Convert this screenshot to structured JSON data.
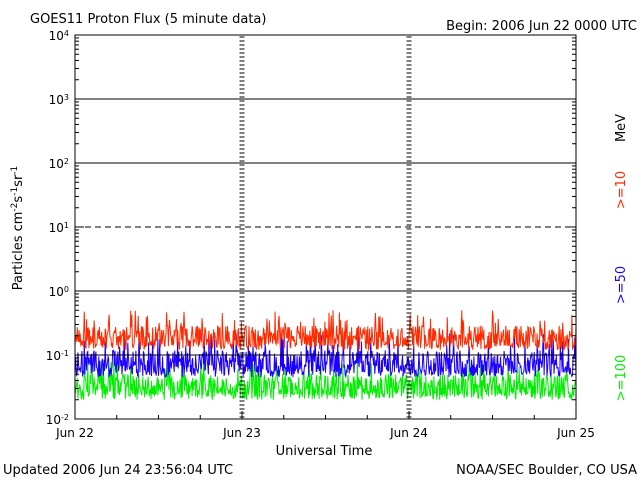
{
  "chart_data": {
    "type": "line",
    "title": "GOES11 Proton Flux (5 minute data)",
    "begin_label": "Begin: 2006 Jun 22 0000 UTC",
    "xlabel": "Universal Time",
    "ylabel_main": "Particles cm",
    "ylabel_sup1": "-2",
    "ylabel_mid1": "s",
    "ylabel_sup2": "-1",
    "ylabel_mid2": "sr",
    "ylabel_sup3": "-1",
    "y_scale": "log",
    "ylim": [
      0.01,
      10000
    ],
    "xlim": [
      "2006-06-22 00:00",
      "2006-06-25 00:00"
    ],
    "x_tick_labels": [
      "Jun 22",
      "Jun 23",
      "Jun 24",
      "Jun 25"
    ],
    "y_tick_base": "10",
    "y_tick_exponents": [
      "-2",
      "-1",
      "0",
      "1",
      "2",
      "3",
      "4"
    ],
    "alert_thresholds": [
      {
        "value": 10,
        "style": "dashed"
      }
    ],
    "solid_reference_lines": [
      0.1,
      1,
      100,
      1000
    ],
    "energy_unit": "MeV",
    "series": [
      {
        "name": ">=10",
        "color": "#ff2a00",
        "min": 0.12,
        "max": 0.5,
        "typical": 0.2,
        "start": "2006-06-22 00:00",
        "end": "2006-06-25 00:00",
        "interval_minutes": 5
      },
      {
        "name": ">=50",
        "color": "#1c00ff",
        "min": 0.045,
        "max": 0.22,
        "typical": 0.08,
        "start": "2006-06-22 00:00",
        "end": "2006-06-25 00:00",
        "interval_minutes": 5
      },
      {
        "name": ">=100",
        "color": "#00ee00",
        "min": 0.02,
        "max": 0.09,
        "typical": 0.035,
        "start": "2006-06-22 00:00",
        "end": "2006-06-25 00:00",
        "interval_minutes": 5
      }
    ]
  },
  "footer": {
    "updated": "Updated 2006 Jun 24 23:56:04 UTC",
    "credit": "NOAA/SEC Boulder, CO USA"
  }
}
